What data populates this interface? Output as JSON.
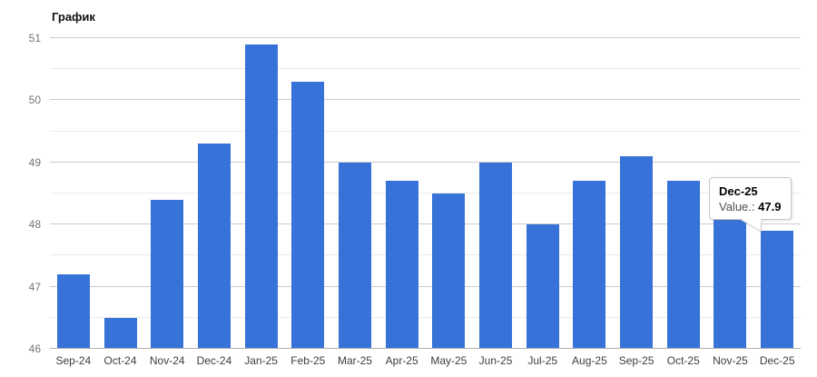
{
  "chart": {
    "title": "График"
  },
  "tooltip": {
    "title": "Dec-25",
    "value_label": "Value.:",
    "value": "47.9"
  },
  "colors": {
    "bar": "#3672d8",
    "grid_major": "#cccccc",
    "grid_minor": "#ebebeb",
    "axis_line": "#b0b0b0",
    "y_label": "#757575",
    "x_label": "#3d3d3d",
    "tooltip_border": "#c9c9c9"
  },
  "chart_data": {
    "type": "bar",
    "title": "График",
    "categories": [
      "Sep-24",
      "Oct-24",
      "Nov-24",
      "Dec-24",
      "Jan-25",
      "Feb-25",
      "Mar-25",
      "Apr-25",
      "May-25",
      "Jun-25",
      "Jul-25",
      "Aug-25",
      "Sep-25",
      "Oct-25",
      "Nov-25",
      "Dec-25"
    ],
    "values": [
      47.2,
      46.5,
      48.4,
      49.3,
      50.9,
      50.3,
      49.0,
      48.7,
      48.5,
      49.0,
      48.0,
      48.7,
      49.1,
      48.7,
      48.1,
      47.9
    ],
    "xlabel": "",
    "ylabel": "",
    "ylim": [
      46,
      51
    ],
    "y_major_step": 1,
    "y_minor_step": 0.5,
    "grid": true,
    "legend": "none",
    "highlighted_bar": "Dec-25"
  }
}
